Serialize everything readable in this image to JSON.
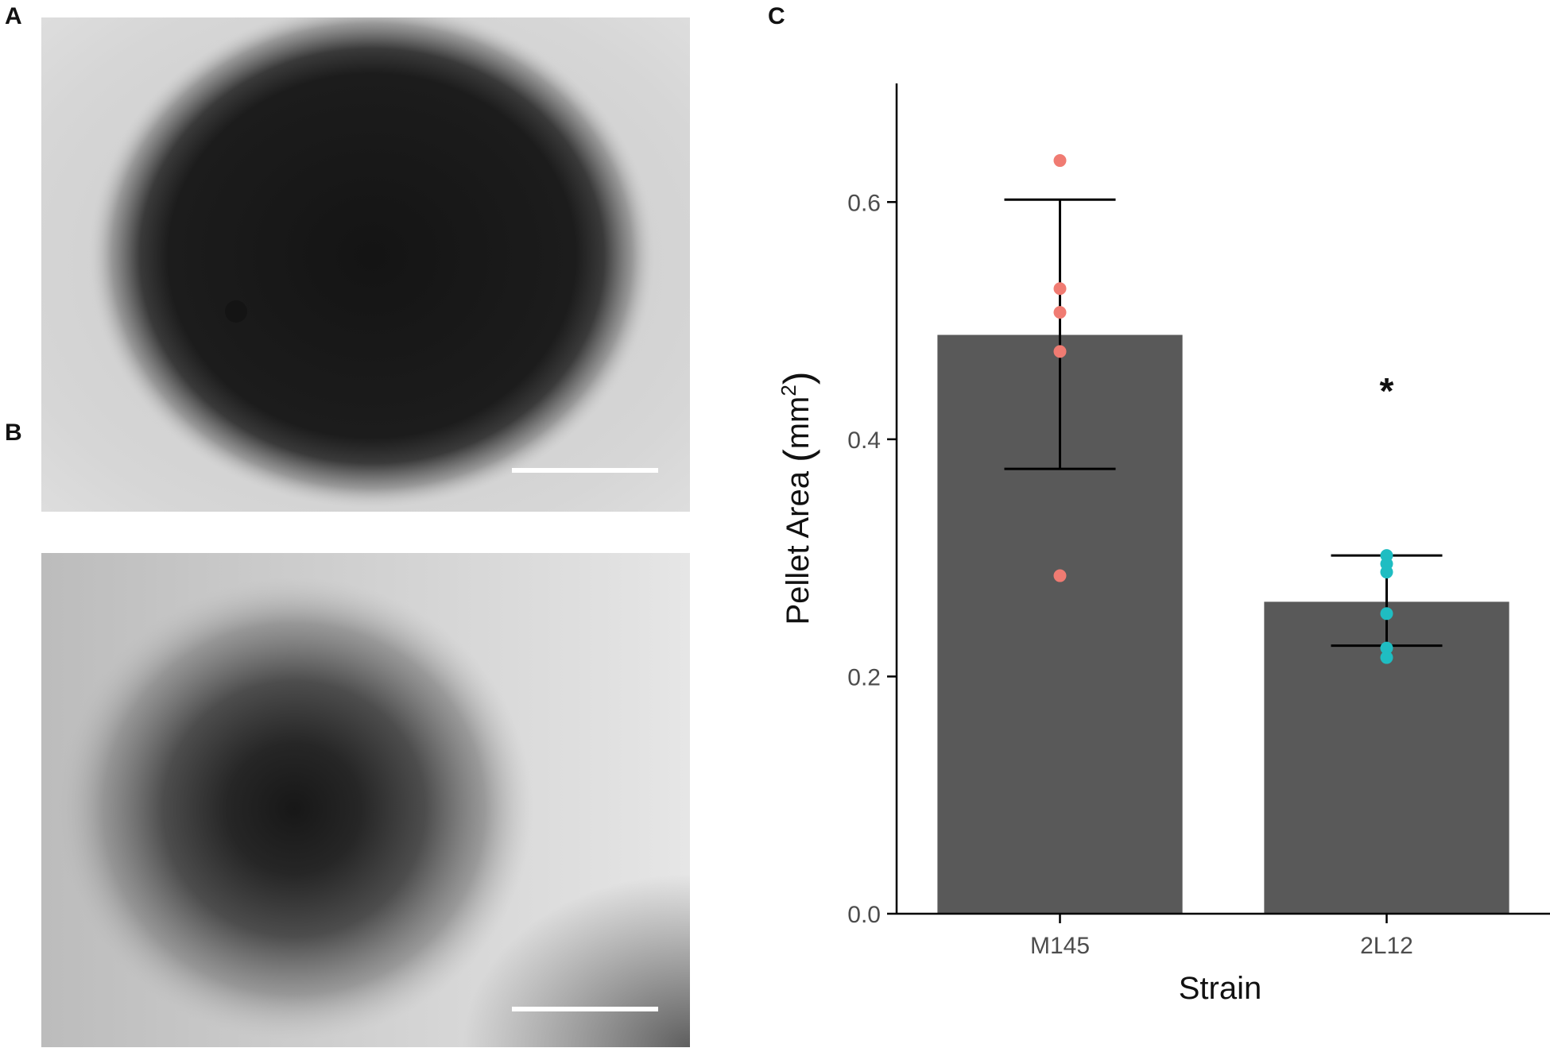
{
  "panels": {
    "a": "A",
    "b": "B",
    "c": "C"
  },
  "chart_data": {
    "type": "bar",
    "xlabel": "Strain",
    "ylabel": "Pellet Area (mm²)",
    "ylabel_parts": {
      "main": "Pellet Area ",
      "open": "(",
      "unit": "mm",
      "sup": "2",
      "close": ")"
    },
    "ylim": [
      0,
      0.7
    ],
    "yticks": [
      0.0,
      0.2,
      0.4,
      0.6
    ],
    "ytick_labels": [
      "0.0",
      "0.2",
      "0.4",
      "0.6"
    ],
    "categories": [
      "M145",
      "2L12"
    ],
    "values": [
      0.488,
      0.263
    ],
    "error": [
      {
        "low": 0.375,
        "high": 0.602
      },
      {
        "low": 0.226,
        "high": 0.302
      }
    ],
    "points": [
      [
        0.635,
        0.527,
        0.507,
        0.474,
        0.285
      ],
      [
        0.302,
        0.295,
        0.288,
        0.253,
        0.224,
        0.216
      ]
    ],
    "point_colors": [
      "#F07B72",
      "#1FBDC2"
    ],
    "bar_color": "#595959",
    "annotations": [
      {
        "category": "2L12",
        "text": "*",
        "y": 0.45
      }
    ],
    "grid": false,
    "legend": "none"
  }
}
